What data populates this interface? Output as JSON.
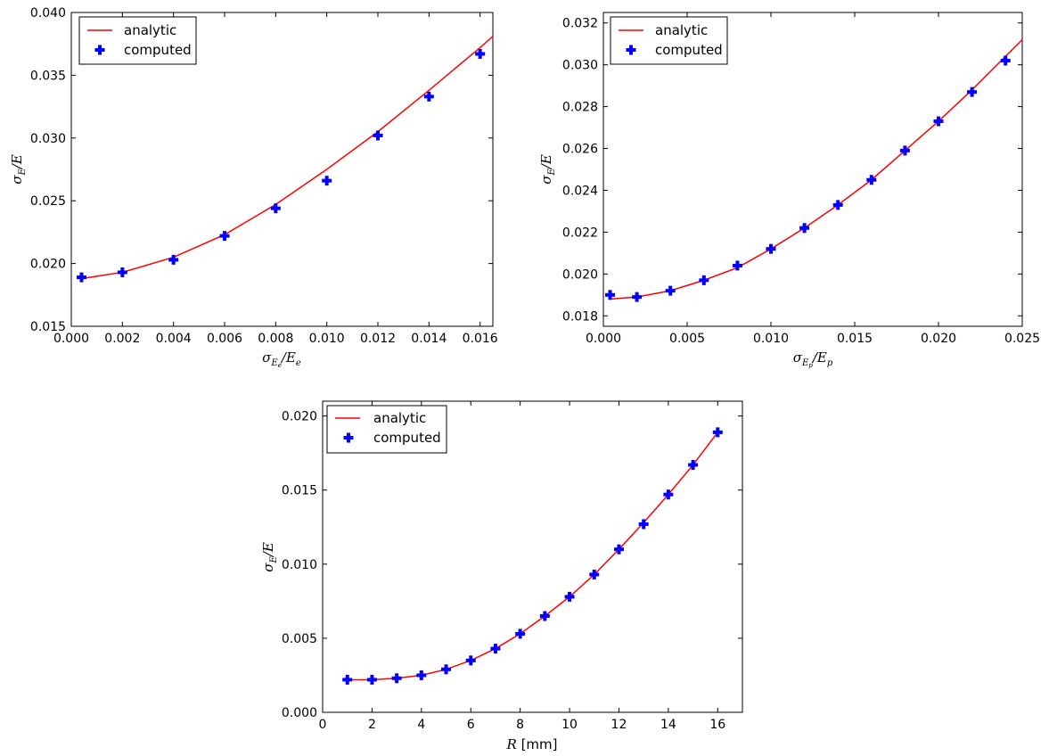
{
  "chart_data": [
    {
      "type": "line",
      "xlabel": "σ_{E_e}/E_e",
      "ylabel": "σ_E/E",
      "xlim": [
        0.0,
        0.0165
      ],
      "ylim": [
        0.015,
        0.04
      ],
      "xticks": [
        "0.000",
        "0.002",
        "0.004",
        "0.006",
        "0.008",
        "0.010",
        "0.012",
        "0.014",
        "0.016"
      ],
      "yticks": [
        "0.015",
        "0.020",
        "0.025",
        "0.030",
        "0.035",
        "0.040"
      ],
      "legend": {
        "position": "top-left",
        "entries": [
          "analytic",
          "computed"
        ]
      },
      "series": [
        {
          "name": "analytic",
          "style": "line",
          "color": "#ff0000",
          "x": [
            0.0004,
            0.002,
            0.004,
            0.006,
            0.008,
            0.01,
            0.012,
            0.014,
            0.016,
            0.0165
          ],
          "y": [
            0.0188,
            0.0193,
            0.0205,
            0.0223,
            0.0247,
            0.0275,
            0.0305,
            0.0338,
            0.0372,
            0.0381
          ]
        },
        {
          "name": "computed",
          "style": "marker",
          "color": "#0000ff",
          "x": [
            0.0004,
            0.002,
            0.004,
            0.006,
            0.008,
            0.01,
            0.012,
            0.014,
            0.016
          ],
          "y": [
            0.0189,
            0.0193,
            0.0203,
            0.0222,
            0.0244,
            0.0266,
            0.0302,
            0.0333,
            0.0367
          ]
        }
      ]
    },
    {
      "type": "line",
      "xlabel": "σ_{E_p}/E_p",
      "ylabel": "σ_E/E",
      "xlim": [
        0.0,
        0.025
      ],
      "ylim": [
        0.0175,
        0.0325
      ],
      "xticks": [
        "0.000",
        "0.005",
        "0.010",
        "0.015",
        "0.020",
        "0.025"
      ],
      "yticks": [
        "0.018",
        "0.020",
        "0.022",
        "0.024",
        "0.026",
        "0.028",
        "0.030",
        "0.032"
      ],
      "legend": {
        "position": "top-left",
        "entries": [
          "analytic",
          "computed"
        ]
      },
      "series": [
        {
          "name": "analytic",
          "style": "line",
          "color": "#ff0000",
          "x": [
            0.0004,
            0.002,
            0.004,
            0.006,
            0.008,
            0.01,
            0.012,
            0.014,
            0.016,
            0.018,
            0.02,
            0.022,
            0.024,
            0.025
          ],
          "y": [
            0.0188,
            0.0189,
            0.0192,
            0.0197,
            0.0203,
            0.0212,
            0.0222,
            0.0233,
            0.0245,
            0.0259,
            0.0273,
            0.0288,
            0.0304,
            0.0312
          ]
        },
        {
          "name": "computed",
          "style": "marker",
          "color": "#0000ff",
          "x": [
            0.0004,
            0.002,
            0.004,
            0.006,
            0.008,
            0.01,
            0.012,
            0.014,
            0.016,
            0.018,
            0.02,
            0.022,
            0.024
          ],
          "y": [
            0.019,
            0.0189,
            0.0192,
            0.0197,
            0.0204,
            0.0212,
            0.0222,
            0.0233,
            0.0245,
            0.0259,
            0.0273,
            0.0287,
            0.0302
          ]
        }
      ]
    },
    {
      "type": "line",
      "xlabel": "R [mm]",
      "ylabel": "σ_E/E",
      "xlim": [
        0,
        17
      ],
      "ylim": [
        0.0,
        0.021
      ],
      "xticks": [
        "0",
        "2",
        "4",
        "6",
        "8",
        "10",
        "12",
        "14",
        "16"
      ],
      "yticks": [
        "0.000",
        "0.005",
        "0.010",
        "0.015",
        "0.020"
      ],
      "legend": {
        "position": "top-left",
        "entries": [
          "analytic",
          "computed"
        ]
      },
      "series": [
        {
          "name": "analytic",
          "style": "line",
          "color": "#ff0000",
          "x": [
            1,
            2,
            3,
            4,
            5,
            6,
            7,
            8,
            9,
            10,
            11,
            12,
            13,
            14,
            15,
            16
          ],
          "y": [
            0.0022,
            0.0022,
            0.0023,
            0.0025,
            0.0029,
            0.0035,
            0.0043,
            0.0053,
            0.0065,
            0.0078,
            0.0093,
            0.011,
            0.0128,
            0.0147,
            0.0167,
            0.0189
          ]
        },
        {
          "name": "computed",
          "style": "marker",
          "color": "#0000ff",
          "x": [
            1,
            2,
            3,
            4,
            5,
            6,
            7,
            8,
            9,
            10,
            11,
            12,
            13,
            14,
            15,
            16
          ],
          "y": [
            0.0022,
            0.0022,
            0.0023,
            0.0025,
            0.0029,
            0.0035,
            0.0043,
            0.0053,
            0.0065,
            0.0078,
            0.0093,
            0.011,
            0.0127,
            0.0147,
            0.0167,
            0.0189
          ]
        }
      ]
    }
  ]
}
